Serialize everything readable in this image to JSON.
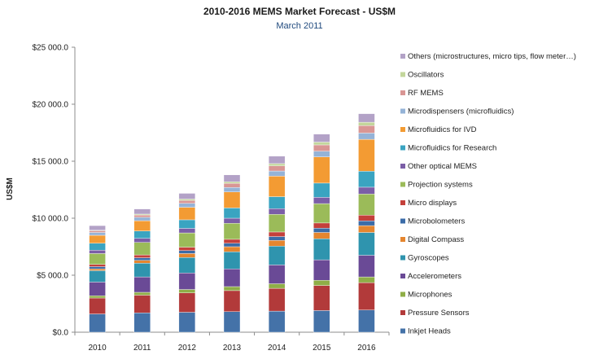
{
  "chart_data": {
    "type": "bar",
    "stacked": true,
    "title": "2010-2016 MEMS Market Forecast - US$M",
    "subtitle": "March 2011",
    "xlabel": "",
    "ylabel": "US$M",
    "ylim": [
      0,
      25000
    ],
    "yticks": [
      "$0.0",
      "$5 000.0",
      "$10 000.0",
      "$15 000.0",
      "$20 000.0",
      "$25 000.0"
    ],
    "ytick_values": [
      0,
      5000,
      10000,
      15000,
      20000,
      25000
    ],
    "grid": false,
    "legend_position": "right",
    "categories": [
      "2010",
      "2011",
      "2012",
      "2013",
      "2014",
      "2015",
      "2016"
    ],
    "series": [
      {
        "name": "Inkjet Heads",
        "color": "#4472a8",
        "values": [
          1600,
          1700,
          1750,
          1800,
          1850,
          1900,
          1950
        ]
      },
      {
        "name": "Pressure Sensors",
        "color": "#b23a3a",
        "values": [
          1400,
          1550,
          1700,
          1850,
          2000,
          2200,
          2400
        ]
      },
      {
        "name": "Microphones",
        "color": "#8fae47",
        "values": [
          200,
          250,
          300,
          350,
          400,
          450,
          500
        ]
      },
      {
        "name": "Accelerometers",
        "color": "#6a4a96",
        "values": [
          1200,
          1350,
          1450,
          1550,
          1650,
          1800,
          1900
        ]
      },
      {
        "name": "Gyroscopes",
        "color": "#2f94ae",
        "values": [
          1000,
          1200,
          1350,
          1500,
          1650,
          1850,
          2000
        ]
      },
      {
        "name": "Digital Compass",
        "color": "#e5862f",
        "values": [
          150,
          250,
          350,
          450,
          500,
          550,
          600
        ]
      },
      {
        "name": "Microbolometers",
        "color": "#3b6ca8",
        "values": [
          200,
          230,
          260,
          300,
          340,
          380,
          420
        ]
      },
      {
        "name": "Micro displays",
        "color": "#c4403b",
        "values": [
          200,
          250,
          300,
          350,
          400,
          450,
          500
        ]
      },
      {
        "name": "Projection systems",
        "color": "#9bbb59",
        "values": [
          950,
          1100,
          1250,
          1400,
          1550,
          1700,
          1850
        ]
      },
      {
        "name": "Other optical MEMS",
        "color": "#7b5ea7",
        "values": [
          300,
          350,
          400,
          450,
          500,
          550,
          600
        ]
      },
      {
        "name": "Microfluidics for Research",
        "color": "#3aa4c1",
        "values": [
          600,
          650,
          750,
          900,
          1050,
          1250,
          1400
        ]
      },
      {
        "name": "Microfluidics for IVD",
        "color": "#f39b33",
        "values": [
          700,
          900,
          1100,
          1400,
          1800,
          2300,
          2800
        ]
      },
      {
        "name": "Microdispensers (microfluidics)",
        "color": "#95b3d7",
        "values": [
          250,
          300,
          350,
          400,
          450,
          500,
          550
        ]
      },
      {
        "name": "RF MEMS",
        "color": "#d99694",
        "values": [
          150,
          200,
          250,
          350,
          450,
          550,
          650
        ]
      },
      {
        "name": "Oscillators",
        "color": "#c3d69b",
        "values": [
          50,
          80,
          120,
          150,
          200,
          250,
          300
        ]
      },
      {
        "name": "Others (microstructures, micro tips, flow meter…)",
        "color": "#b3a2c7",
        "values": [
          400,
          450,
          500,
          600,
          650,
          700,
          750
        ]
      }
    ]
  }
}
